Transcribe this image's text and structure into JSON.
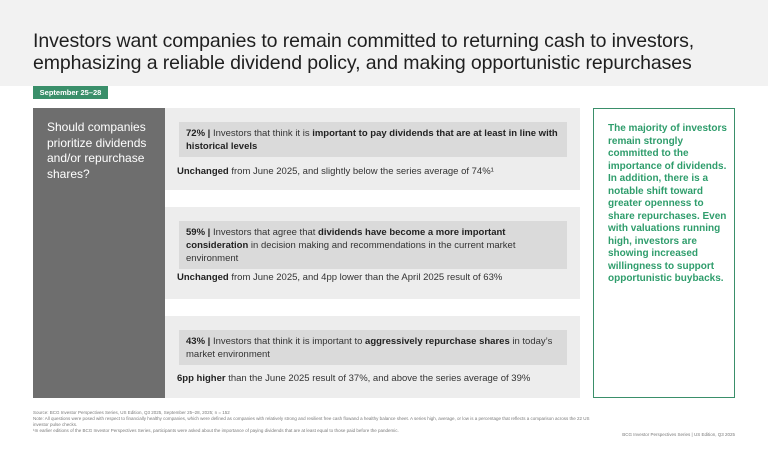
{
  "header": {
    "title": "Investors want companies to remain committed to returning cash to investors, emphasizing a reliable dividend policy, and making opportunistic repurchases"
  },
  "date_tag": "September 25–28",
  "question": "Should companies prioritize dividends and/or repurchase shares?",
  "cards": [
    {
      "pct": "72% |",
      "head_plain": " Investors that think it is ",
      "head_bold": "important to pay dividends that are at least in line with historical levels",
      "head_tail": "",
      "foot_bold": "Unchanged",
      "foot_rest": " from June 2025, and slightly below the series average of 74%¹"
    },
    {
      "pct": "59% |",
      "head_plain": " Investors that agree that ",
      "head_bold": "dividends have become a more important consideration",
      "head_tail": " in decision making and recommendations in the current market environment",
      "foot_bold": "Unchanged",
      "foot_rest": " from June 2025, and 4pp lower than the April 2025 result of 63%"
    },
    {
      "pct": "43% |",
      "head_plain": " Investors that think it is important to ",
      "head_bold": "aggressively repurchase shares",
      "head_tail": " in today’s market environment",
      "foot_bold": "6pp higher",
      "foot_rest": " than the June 2025 result of 37%, and above the series average of 39%"
    }
  ],
  "side_note": "The majority of investors remain strongly committed to the importance of dividends. In addition, there is a notable shift toward greater openness to share repurchases. Even with valuations running high, investors are showing increased willingness to support opportunistic buybacks.",
  "notes": {
    "source": "Source: BCG Investor Perspectives Series, US Edition, Q3 2025, September 25–28, 2025; n = 152",
    "note": "Note: All questions were posed with respect to financially healthy companies, which were defined as companies with relatively strong and resilient free cash flowand a healthy balance sheet. A series high, average, or low is a percentage that reflects a comparison across the 22 US investor pulse checks.",
    "footnote": "¹In earlier editions of the BCG Investor Perspectives Series, participants were asked about the importance of paying dividends that are at least equal to those paid before the pandemic."
  },
  "footer": "BCG Investor Perspectives Series | US Edition, Q3 2025"
}
